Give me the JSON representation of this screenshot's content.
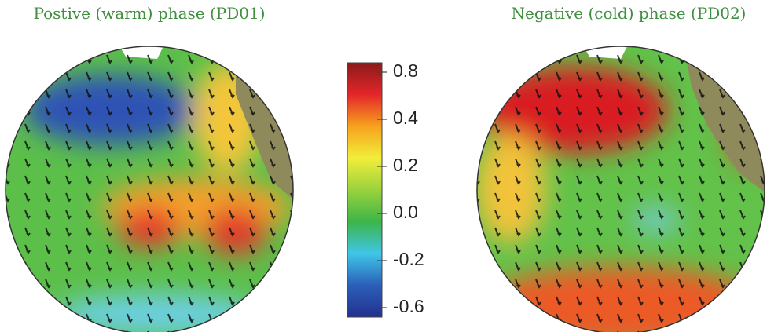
{
  "panels": [
    {
      "title": "Postive (warm) phase (PD01)"
    },
    {
      "title": "Negative (cold) phase (PD02)"
    }
  ],
  "colorbar": {
    "colors": [
      "#8b1a1a",
      "#e4262a",
      "#f7a21e",
      "#f2ee3a",
      "#9ad23c",
      "#3cb549",
      "#3fc5e8",
      "#2b5fb8",
      "#23308f"
    ],
    "ticks": [
      0.8,
      0.4,
      0.2,
      {
        "value": 0,
        "label": "0.0"
      },
      -0.2,
      -0.6
    ]
  }
}
